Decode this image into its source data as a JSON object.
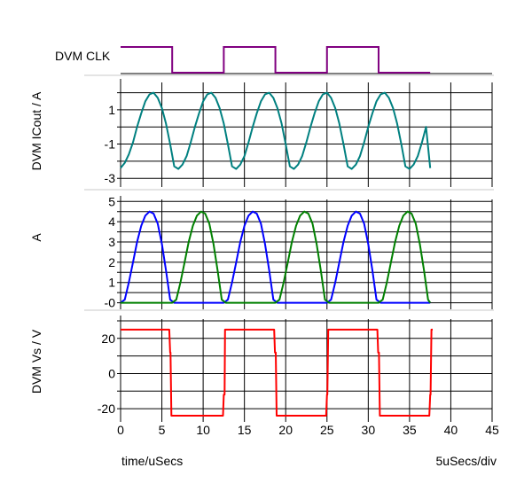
{
  "chart_data": {
    "type": "line",
    "x_axis": {
      "label": "time/uSecs",
      "scale_note": "5uSecs/div",
      "range": [
        0,
        45
      ],
      "ticks": [
        0,
        5,
        10,
        15,
        20,
        25,
        30,
        35,
        40,
        45
      ]
    },
    "panels": [
      {
        "id": "clk",
        "ylabel": "DVM CLK",
        "kind": "digital",
        "series": [
          {
            "color": "#800080",
            "edges_x": [
              0,
              6.25,
              12.5,
              18.75,
              25,
              31.25,
              37.5
            ],
            "levels": [
              1,
              0,
              1,
              0,
              1,
              0
            ]
          }
        ]
      },
      {
        "id": "icout",
        "ylabel": "DVM ICout / A",
        "ylim": [
          -3.3,
          2.6
        ],
        "yticks": [
          1,
          -1,
          -3
        ],
        "ytick_labels": [
          "1",
          "-1",
          "-3"
        ],
        "series": [
          {
            "color": "#008080",
            "x": [
              0,
              0.5,
              1,
              1.5,
              2,
              2.5,
              3,
              3.5,
              4,
              4.5,
              5,
              5.5,
              6,
              6.5,
              7,
              7.5,
              8,
              8.5,
              9,
              9.5,
              10,
              10.5,
              11,
              11.5,
              12,
              12.5,
              13,
              13.5,
              14,
              14.5,
              15,
              15.5,
              16,
              16.5,
              17,
              17.5,
              18,
              18.5,
              19,
              19.5,
              20,
              20.5,
              21,
              21.5,
              22,
              22.5,
              23,
              23.5,
              24,
              24.5,
              25,
              25.5,
              26,
              26.5,
              27,
              27.5,
              28,
              28.5,
              29,
              29.5,
              30,
              30.5,
              31,
              31.5,
              32,
              32.5,
              33,
              33.5,
              34,
              34.5,
              35,
              35.5,
              36,
              36.5,
              37,
              37.5
            ],
            "y": [
              -2.4,
              -2.1,
              -1.6,
              -0.9,
              0,
              0.8,
              1.5,
              1.9,
              2.0,
              1.7,
              1.1,
              0.2,
              -1.0,
              -2.3,
              -2.45,
              -2.2,
              -1.7,
              -0.9,
              0,
              0.8,
              1.5,
              1.9,
              2.0,
              1.7,
              1.1,
              0.2,
              -1.0,
              -2.3,
              -2.45,
              -2.2,
              -1.7,
              -0.9,
              0,
              0.8,
              1.5,
              1.9,
              2.0,
              1.7,
              1.1,
              0.2,
              -1.0,
              -2.3,
              -2.45,
              -2.2,
              -1.7,
              -0.9,
              0,
              0.8,
              1.5,
              1.9,
              2.0,
              1.7,
              1.1,
              0.2,
              -1.0,
              -2.3,
              -2.45,
              -2.2,
              -1.7,
              -0.9,
              0,
              0.8,
              1.5,
              1.9,
              2.0,
              1.7,
              1.1,
              0.2,
              -1.0,
              -2.3,
              -2.45,
              -2.2,
              -1.7,
              -0.9,
              0,
              -2.4
            ]
          }
        ]
      },
      {
        "id": "current",
        "ylabel": "A",
        "ylim": [
          -0.15,
          5.1
        ],
        "yticks": [
          5,
          4,
          3,
          2,
          1,
          0
        ],
        "ytick_labels": [
          "5",
          "4",
          "3",
          "2",
          "1",
          "-0"
        ],
        "series": [
          {
            "color": "#0000ff",
            "x": [
              0,
              0.5,
              1,
              1.5,
              2,
              2.5,
              3,
              3.5,
              4,
              4.5,
              5,
              5.5,
              6,
              6.5,
              12.5,
              13,
              13.5,
              14,
              14.5,
              15,
              15.5,
              16,
              16.5,
              17,
              17.5,
              18,
              18.5,
              19,
              25,
              25.5,
              26,
              26.5,
              27,
              27.5,
              28,
              28.5,
              29,
              29.5,
              30,
              30.5,
              31,
              31.5,
              37.5
            ],
            "y": [
              0,
              0.15,
              1.0,
              2.0,
              3.0,
              3.8,
              4.3,
              4.5,
              4.4,
              3.9,
              2.9,
              1.6,
              0.15,
              0,
              0,
              0.15,
              1.0,
              2.0,
              3.0,
              3.8,
              4.3,
              4.5,
              4.4,
              3.9,
              2.9,
              1.6,
              0.15,
              0,
              0,
              0.15,
              1.0,
              2.0,
              3.0,
              3.8,
              4.3,
              4.5,
              4.4,
              3.9,
              2.9,
              1.6,
              0.15,
              0,
              0
            ]
          },
          {
            "color": "#008000",
            "x": [
              0,
              6.25,
              6.75,
              7.25,
              7.75,
              8.25,
              8.75,
              9.25,
              9.75,
              10.25,
              10.75,
              11.25,
              11.75,
              12.25,
              12.75,
              18.75,
              19.25,
              19.75,
              20.25,
              20.75,
              21.25,
              21.75,
              22.25,
              22.75,
              23.25,
              23.75,
              24.25,
              24.75,
              25.25,
              31.25,
              31.75,
              32.25,
              32.75,
              33.25,
              33.75,
              34.25,
              34.75,
              35.25,
              35.75,
              36.25,
              36.75,
              37.25,
              37.5
            ],
            "y": [
              0,
              0,
              0.15,
              1.0,
              2.0,
              3.0,
              3.8,
              4.3,
              4.5,
              4.4,
              3.9,
              2.9,
              1.6,
              0.15,
              0,
              0,
              0.15,
              1.0,
              2.0,
              3.0,
              3.8,
              4.3,
              4.5,
              4.4,
              3.9,
              2.9,
              1.6,
              0.15,
              0,
              0,
              0.15,
              1.0,
              2.0,
              3.0,
              3.8,
              4.3,
              4.5,
              4.4,
              3.9,
              2.9,
              1.6,
              0.15,
              0
            ]
          }
        ]
      },
      {
        "id": "vs",
        "ylabel": "DVM Vs / V",
        "ylim": [
          -25.5,
          31
        ],
        "yticks": [
          20,
          0,
          -20
        ],
        "ytick_labels": [
          "20",
          "0",
          "-20"
        ],
        "series": [
          {
            "color": "#ff0000",
            "x": [
              0,
              5.9,
              6.0,
              6.05,
              6.15,
              6.3,
              12.4,
              12.5,
              12.6,
              12.65,
              12.8,
              18.6,
              18.7,
              18.8,
              18.9,
              19.0,
              24.9,
              25.0,
              25.05,
              25.15,
              25.3,
              31.1,
              31.2,
              31.3,
              31.4,
              31.5,
              37.4,
              37.5,
              37.55,
              37.65,
              37.8
            ],
            "y": [
              25,
              25,
              12,
              12,
              -24,
              -24,
              -24,
              -12,
              -12,
              25,
              25,
              25,
              12,
              12,
              -24,
              -24,
              -24,
              -12,
              -12,
              25,
              25,
              25,
              12,
              12,
              -24,
              -24,
              -24,
              -12,
              -12,
              25,
              25
            ]
          }
        ]
      }
    ],
    "grid": true
  }
}
